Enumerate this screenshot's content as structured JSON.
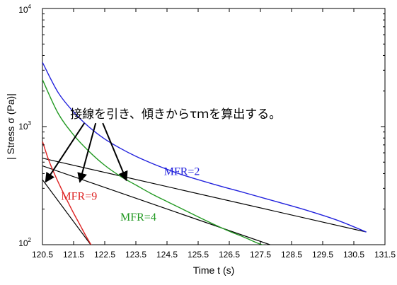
{
  "chart_data": {
    "type": "line",
    "title": "",
    "xlabel": "Time t (s)",
    "ylabel": "| Stress σ (Pa)|",
    "xlim": [
      120.5,
      131.5
    ],
    "ylim": [
      100,
      10000
    ],
    "yscale": "log",
    "grid": false,
    "x_ticks": [
      "120.5",
      "121.5",
      "122.5",
      "123.5",
      "124.5",
      "125.5",
      "126.5",
      "127.5",
      "128.5",
      "129.5",
      "130.5",
      "131.5"
    ],
    "y_ticks": [
      {
        "value": 100,
        "base": "10",
        "exp": "2"
      },
      {
        "value": 1000,
        "base": "10",
        "exp": "3"
      },
      {
        "value": 10000,
        "base": "10",
        "exp": "4"
      }
    ],
    "series": [
      {
        "name": "MFR=2",
        "color": "#2222dd",
        "x": [
          120.5,
          121.0,
          121.5,
          122.0,
          122.5,
          123.0,
          123.5,
          124.0,
          124.5,
          125.0,
          126.0,
          127.0,
          128.0,
          129.0,
          130.0,
          130.9
        ],
        "y": [
          3500,
          1950,
          1330,
          990,
          785,
          655,
          560,
          490,
          435,
          390,
          325,
          275,
          232,
          195,
          160,
          128
        ]
      },
      {
        "name": "MFR=4",
        "color": "#229922",
        "x": [
          120.5,
          121.0,
          121.5,
          122.0,
          122.5,
          123.0,
          123.5,
          124.0,
          124.5,
          125.0,
          125.5,
          126.0,
          126.5,
          127.0,
          127.5,
          127.9
        ],
        "y": [
          2500,
          1300,
          850,
          615,
          470,
          380,
          320,
          270,
          232,
          200,
          172,
          149,
          130,
          115,
          101,
          96
        ]
      },
      {
        "name": "MFR=9",
        "color": "#dd2222",
        "x": [
          120.5,
          120.7,
          120.9,
          121.1,
          121.3,
          121.5,
          121.7,
          121.9,
          122.1
        ],
        "y": [
          750,
          520,
          390,
          300,
          235,
          185,
          148,
          118,
          96
        ]
      }
    ],
    "tangent_lines": [
      {
        "color": "#000000",
        "x": [
          120.5,
          130.9
        ],
        "y": [
          540,
          128
        ]
      },
      {
        "color": "#000000",
        "x": [
          120.5,
          128.0
        ],
        "y": [
          465,
          96
        ]
      },
      {
        "color": "#000000",
        "x": [
          120.5,
          122.1
        ],
        "y": [
          355,
          96
        ]
      }
    ],
    "annotations": [
      {
        "text": "接線を引き、傾きからτｍを算出する。",
        "x": 122.3,
        "y": 1100,
        "arrow_targets": [
          [
            120.6,
            340
          ],
          [
            121.7,
            340
          ],
          [
            123.2,
            350
          ]
        ]
      }
    ],
    "series_labels": [
      {
        "series": "MFR=2",
        "x": 124.4,
        "y": 390
      },
      {
        "series": "MFR=4",
        "x": 123.0,
        "y": 160
      },
      {
        "series": "MFR=9",
        "x": 121.1,
        "y": 240
      }
    ]
  }
}
